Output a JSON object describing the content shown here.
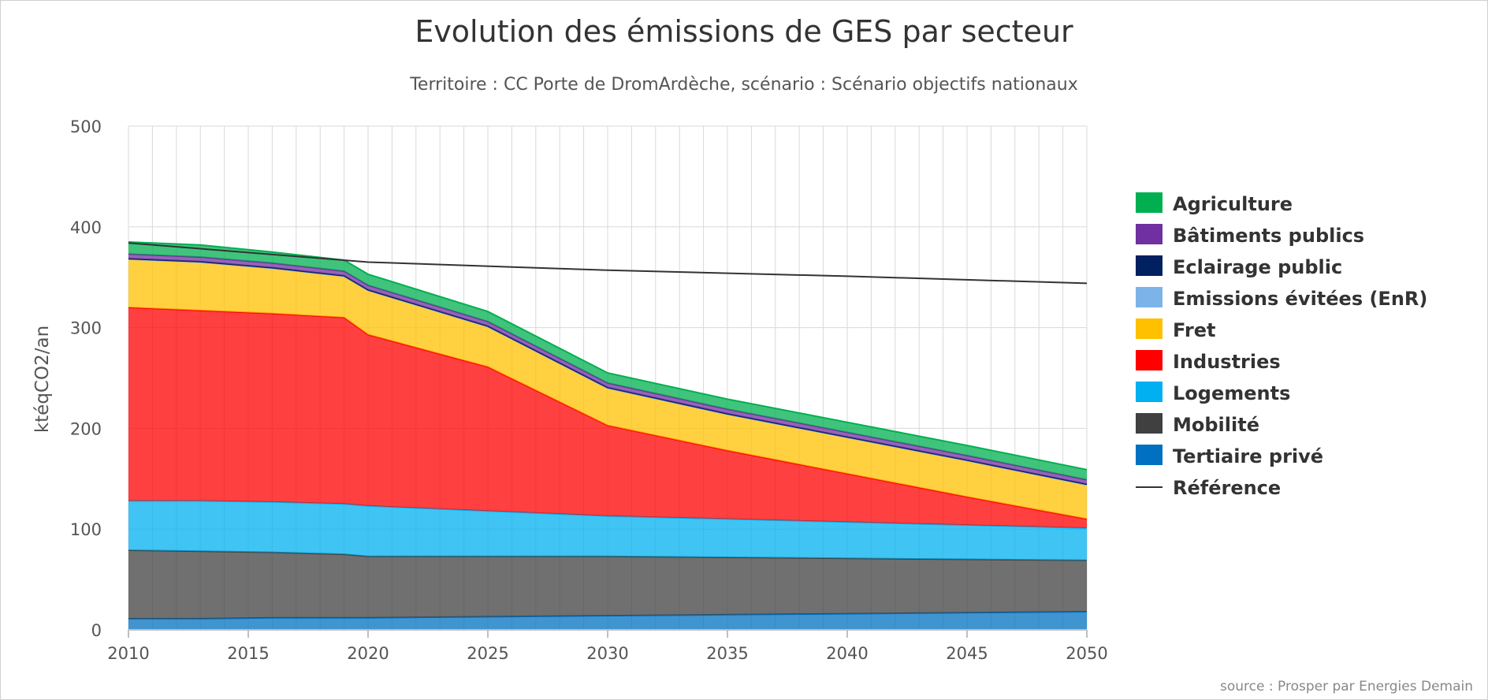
{
  "chart_data": {
    "type": "area",
    "stacked": true,
    "title": "Evolution des émissions de GES par secteur",
    "subtitle": "Territoire : CC Porte de DromArdèche, scénario : Scénario objectifs nationaux",
    "ylabel": "ktéqCO2/an",
    "xlabel": "",
    "xlim": [
      2010,
      2050
    ],
    "ylim": [
      0,
      500
    ],
    "x_ticks": [
      2010,
      2015,
      2020,
      2025,
      2030,
      2035,
      2040,
      2045,
      2050
    ],
    "y_ticks": [
      0,
      100,
      200,
      300,
      400,
      500
    ],
    "grid": true,
    "legend_position": "right",
    "credit": "source : Prosper par Energies Demain",
    "x": [
      2010,
      2013,
      2016,
      2019,
      2020,
      2025,
      2030,
      2035,
      2040,
      2045,
      2050
    ],
    "series": [
      {
        "name": "Tertiaire privé",
        "color": "#0070c0",
        "values": [
          11,
          11,
          12,
          12,
          12,
          13,
          14,
          15,
          16,
          17,
          18
        ]
      },
      {
        "name": "Mobilité",
        "color": "#404040",
        "values": [
          68,
          67,
          65,
          63,
          61,
          60,
          59,
          57,
          55,
          53,
          51
        ]
      },
      {
        "name": "Logements",
        "color": "#00b0f0",
        "values": [
          49,
          50,
          50,
          50,
          50,
          45,
          40,
          38,
          36,
          34,
          32
        ]
      },
      {
        "name": "Industries",
        "color": "#ff0000",
        "values": [
          192,
          189,
          187,
          185,
          170,
          143,
          90,
          68,
          48,
          28,
          9
        ]
      },
      {
        "name": "Fret",
        "color": "#ffc000",
        "values": [
          48,
          48,
          45,
          41,
          44,
          40,
          37,
          36,
          36,
          36,
          34
        ]
      },
      {
        "name": "Emissions évitées (EnR)",
        "color": "#7cb4ea",
        "values": [
          0,
          0,
          0,
          0,
          0,
          0,
          0,
          0,
          0,
          0,
          0
        ]
      },
      {
        "name": "Eclairage public",
        "color": "#002060",
        "values": [
          0.5,
          0.5,
          0.5,
          0.5,
          0.5,
          0.5,
          0.5,
          0.5,
          0.5,
          0.5,
          0.5
        ]
      },
      {
        "name": "Bâtiments publics",
        "color": "#7030a0",
        "values": [
          4.5,
          4.5,
          4.5,
          4.5,
          4.5,
          4.5,
          4.5,
          4.5,
          4.5,
          4.5,
          4.5
        ]
      },
      {
        "name": "Agriculture",
        "color": "#00b050",
        "values": [
          12,
          12,
          11,
          11,
          11,
          10,
          10,
          10,
          10,
          10,
          10
        ]
      }
    ],
    "reference": {
      "name": "Référence",
      "color": "#333333",
      "x": [
        2010,
        2020,
        2030,
        2040,
        2050
      ],
      "values": [
        384,
        365,
        357,
        351,
        344
      ]
    },
    "legend_order": [
      "Agriculture",
      "Bâtiments publics",
      "Eclairage public",
      "Emissions évitées (EnR)",
      "Fret",
      "Industries",
      "Logements",
      "Mobilité",
      "Tertiaire privé",
      "Référence"
    ]
  }
}
